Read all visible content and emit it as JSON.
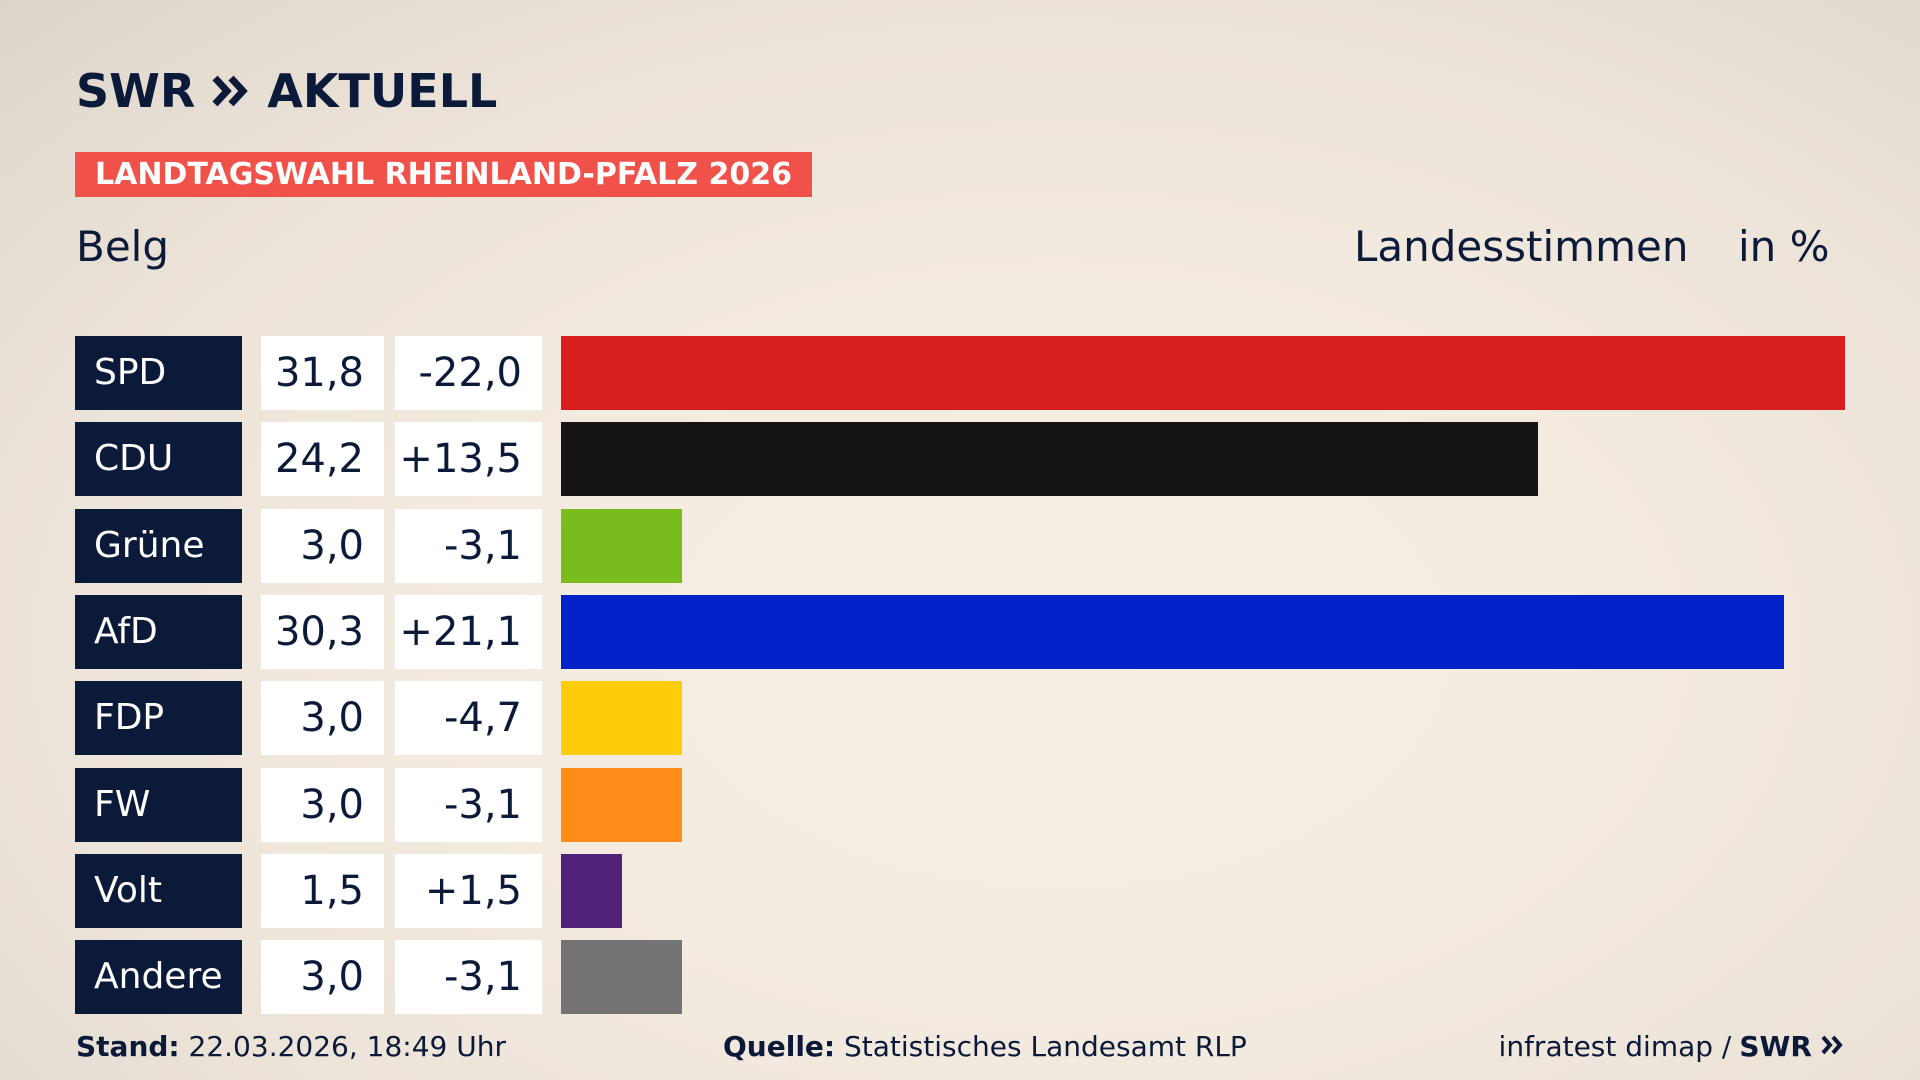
{
  "brand": {
    "logo_text_left": "SWR",
    "logo_text_right": "AKTUELL",
    "footer_logo": "SWR"
  },
  "banner": "LANDTAGSWAHL RHEINLAND-PFALZ 2026",
  "region": "Belg",
  "measure": "Landesstimmen",
  "unit": "in %",
  "footer": {
    "stand_label": "Stand:",
    "stand_value": "22.03.2026, 18:49 Uhr",
    "source_label": "Quelle:",
    "source_value": "Statistisches Landesamt RLP",
    "credit": "infratest dimap /"
  },
  "colors": {
    "navy": "#0c1a3a",
    "banner": "#f0524a",
    "SPD": "#d81e1e",
    "CDU": "#141414",
    "Grüne": "#78bc1e",
    "AfD": "#0022c8",
    "FDP": "#ffcc0a",
    "FW": "#ff8c19",
    "Volt": "#502178",
    "Andere": "#737373"
  },
  "chart_data": {
    "type": "bar",
    "orientation": "horizontal",
    "categories": [
      "SPD",
      "CDU",
      "Grüne",
      "AfD",
      "FDP",
      "FW",
      "Volt",
      "Andere"
    ],
    "values": [
      31.8,
      24.2,
      3.0,
      30.3,
      3.0,
      3.0,
      1.5,
      3.0
    ],
    "value_labels": [
      "31,8",
      "24,2",
      "3,0",
      "30,3",
      "3,0",
      "3,0",
      "1,5",
      "3,0"
    ],
    "diff_labels": [
      "-22,0",
      "+13,5",
      "-3,1",
      "+21,1",
      "-4,7",
      "-3,1",
      "+1,5",
      "-3,1"
    ],
    "xlim": [
      0,
      31.8
    ]
  }
}
